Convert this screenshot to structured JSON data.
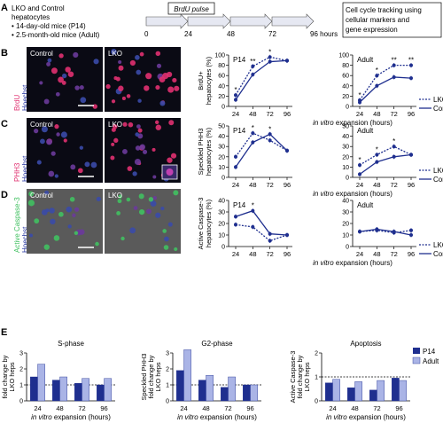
{
  "panelA": {
    "letter": "A",
    "lines": [
      "LKO and Control",
      "hepatocytes",
      "• 14-day-old mice (P14)",
      "• 2.5-month-old mice (Adult)"
    ],
    "pulse_label": "BrdU pulse",
    "time_labels": [
      "0",
      "24",
      "48",
      "72",
      "96 hours"
    ],
    "note_lines": [
      "Cell cycle tracking using",
      "cellular markers and",
      "gene expression"
    ]
  },
  "colors": {
    "series": "#1f2f8f",
    "light_bar": "#aab4e6",
    "dark_bar": "#1f2f8f",
    "red_stain": "#e03070",
    "green_stain": "#40c060"
  },
  "micro": {
    "rows": [
      {
        "letter": "B",
        "stain_top": "BrdU",
        "stain_bottom": "Hoechst",
        "left": "Control",
        "right": "LKO"
      },
      {
        "letter": "C",
        "stain_top": "PHH3",
        "stain_bottom": "Hoechst",
        "left": "Control",
        "right": "LKO"
      },
      {
        "letter": "D",
        "stain_top": "Active Caspase-3",
        "stain_bottom": "Hoechst",
        "left": "Control",
        "right": "LKO"
      }
    ]
  },
  "panelE_letter": "E",
  "chart_data": [
    {
      "type": "line",
      "id": "B-P14",
      "title": "P14",
      "ylabel": [
        "BrdU+",
        "hepatocytes (%)"
      ],
      "x": [
        24,
        48,
        72,
        96
      ],
      "xlabel": "",
      "ylim": [
        0,
        100
      ],
      "yticks": [
        0,
        20,
        40,
        60,
        80,
        100
      ],
      "series": [
        {
          "name": "LKO",
          "values": [
            22,
            78,
            96,
            89
          ]
        },
        {
          "name": "Control",
          "values": [
            13,
            62,
            87,
            89
          ]
        }
      ],
      "annotations": [
        {
          "x": 24,
          "text": "*"
        },
        {
          "x": 48,
          "text": "**"
        },
        {
          "x": 72,
          "text": "*"
        }
      ]
    },
    {
      "type": "line",
      "id": "B-Adult",
      "title": "Adult",
      "ylabel": [],
      "x": [
        24,
        48,
        72,
        96
      ],
      "xlabel": "",
      "ylim": [
        0,
        100
      ],
      "yticks": [
        0,
        20,
        40,
        60,
        80,
        100
      ],
      "series": [
        {
          "name": "LKO",
          "values": [
            12,
            60,
            80,
            80
          ]
        },
        {
          "name": "Control",
          "values": [
            8,
            40,
            57,
            55
          ]
        }
      ],
      "annotations": [
        {
          "x": 24,
          "text": "*"
        },
        {
          "x": 48,
          "text": "*"
        },
        {
          "x": 72,
          "text": "**"
        },
        {
          "x": 96,
          "text": "**"
        }
      ]
    },
    {
      "type": "line",
      "id": "C-P14",
      "title": "P14",
      "ylabel": [
        "Speckled PHH3",
        "hepatocytes (%)"
      ],
      "x": [
        24,
        48,
        72,
        96
      ],
      "xlabel": "",
      "ylim": [
        0,
        50
      ],
      "yticks": [
        0,
        10,
        20,
        30,
        40,
        50
      ],
      "series": [
        {
          "name": "LKO",
          "values": [
            20,
            43,
            36,
            26
          ]
        },
        {
          "name": "Control",
          "values": [
            10,
            34,
            42,
            26
          ]
        }
      ],
      "annotations": [
        {
          "x": 48,
          "text": "*"
        },
        {
          "x": 72,
          "text": "*"
        }
      ]
    },
    {
      "type": "line",
      "id": "C-Adult",
      "title": "Adult",
      "ylabel": [],
      "x": [
        24,
        48,
        72,
        96
      ],
      "xlabel": "",
      "ylim": [
        0,
        50
      ],
      "yticks": [
        0,
        10,
        20,
        30,
        40,
        50
      ],
      "series": [
        {
          "name": "LKO",
          "values": [
            12,
            22,
            30,
            22
          ]
        },
        {
          "name": "Control",
          "values": [
            3,
            15,
            20,
            22
          ]
        }
      ],
      "annotations": [
        {
          "x": 24,
          "text": "*"
        },
        {
          "x": 48,
          "text": "*"
        },
        {
          "x": 72,
          "text": "*"
        }
      ]
    },
    {
      "type": "line",
      "id": "D-P14",
      "title": "P14",
      "ylabel": [
        "Active Caspase-3",
        "hepatocytes (%)"
      ],
      "x": [
        24,
        48,
        72,
        96
      ],
      "xlabel": "",
      "ylim": [
        0,
        40
      ],
      "yticks": [
        0,
        10,
        20,
        30,
        40
      ],
      "series": [
        {
          "name": "LKO",
          "values": [
            19,
            17,
            5,
            10
          ]
        },
        {
          "name": "Control",
          "values": [
            26,
            31,
            11,
            10
          ]
        }
      ],
      "annotations": [
        {
          "x": 48,
          "text": "*"
        }
      ]
    },
    {
      "type": "line",
      "id": "D-Adult",
      "title": "Adult",
      "ylabel": [],
      "x": [
        24,
        48,
        72,
        96
      ],
      "xlabel": "",
      "ylim": [
        0,
        40
      ],
      "yticks": [
        0,
        10,
        20,
        30,
        40
      ],
      "series": [
        {
          "name": "LKO",
          "values": [
            13,
            14,
            12,
            14
          ]
        },
        {
          "name": "Control",
          "values": [
            13,
            15,
            13,
            10
          ]
        }
      ],
      "annotations": []
    },
    {
      "type": "bar",
      "id": "E-S",
      "title": "S-phase",
      "ylabel": [
        "BrdU+",
        "fold change by",
        "LKO heps"
      ],
      "categories": [
        "24",
        "48",
        "72",
        "96"
      ],
      "ylim": [
        0,
        3
      ],
      "yticks": [
        0,
        1,
        2,
        3
      ],
      "reference_line": 1,
      "series": [
        {
          "name": "P14",
          "values": [
            1.5,
            1.3,
            1.1,
            1.0
          ]
        },
        {
          "name": "Adult",
          "values": [
            2.3,
            1.5,
            1.4,
            1.4
          ]
        }
      ]
    },
    {
      "type": "bar",
      "id": "E-G2",
      "title": "G2-phase",
      "ylabel": [
        "Speckled PHH3",
        "fold change by",
        "LKO heps"
      ],
      "categories": [
        "24",
        "48",
        "72",
        "96"
      ],
      "ylim": [
        0,
        3
      ],
      "yticks": [
        0,
        1,
        2,
        3
      ],
      "reference_line": 1,
      "series": [
        {
          "name": "P14",
          "values": [
            1.9,
            1.3,
            0.85,
            1.0
          ]
        },
        {
          "name": "Adult",
          "values": [
            3.2,
            1.6,
            1.5,
            1.0
          ]
        }
      ]
    },
    {
      "type": "bar",
      "id": "E-Apo",
      "title": "Apoptosis",
      "ylabel": [
        "Active Caspase-3",
        "fold change by",
        "LKO heps"
      ],
      "categories": [
        "24",
        "48",
        "72",
        "96"
      ],
      "ylim": [
        0,
        2
      ],
      "yticks": [
        0,
        1,
        2
      ],
      "reference_line": 1,
      "series": [
        {
          "name": "P14",
          "values": [
            0.75,
            0.55,
            0.45,
            0.95
          ]
        },
        {
          "name": "Adult",
          "values": [
            0.9,
            0.8,
            0.85,
            0.85
          ]
        }
      ]
    }
  ],
  "legend_line": {
    "dashed": "LKO",
    "solid": "Control"
  },
  "legend_bar": {
    "dark": "P14",
    "light": "Adult"
  },
  "xaxis_italic": "in vitro",
  "xaxis_rest": " expansion (hours)"
}
